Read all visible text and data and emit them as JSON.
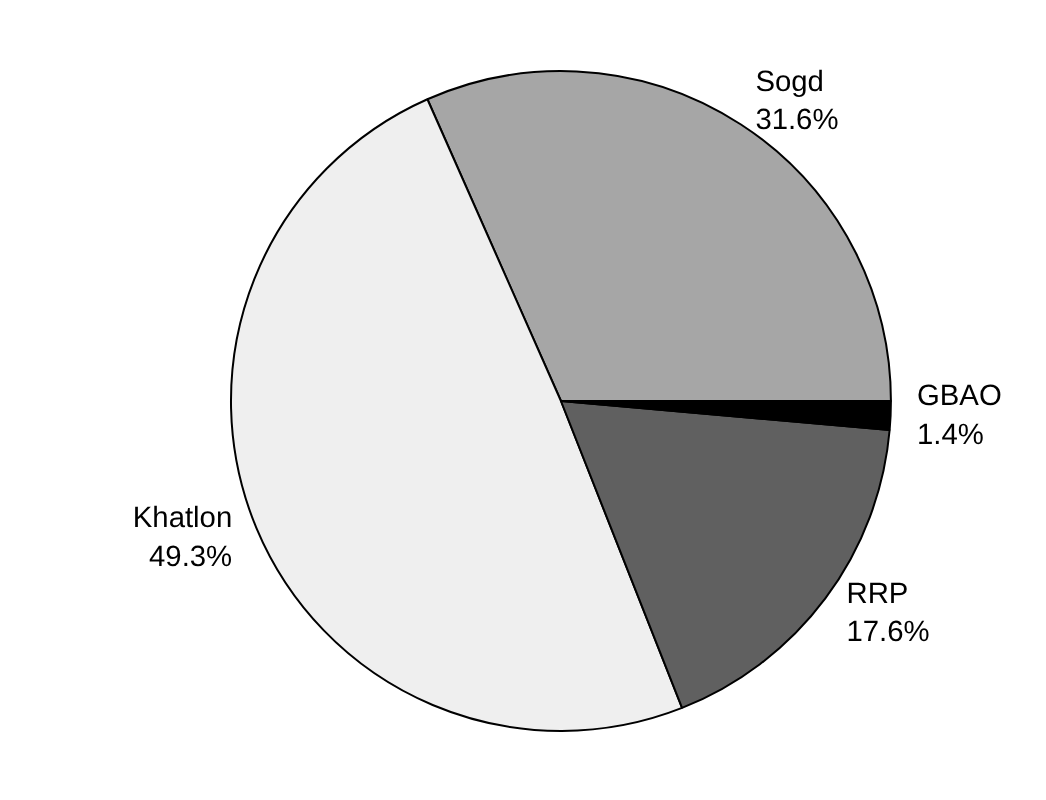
{
  "chart_data": {
    "type": "pie",
    "categories": [
      "Sogd",
      "Khatlon",
      "RRP",
      "GBAO"
    ],
    "values": [
      31.6,
      49.3,
      17.6,
      1.4
    ],
    "colors": [
      "#a6a6a6",
      "#efefef",
      "#606060",
      "#000000"
    ],
    "value_labels": [
      "31.6%",
      "49.3%",
      "17.6%",
      "1.4%"
    ]
  }
}
